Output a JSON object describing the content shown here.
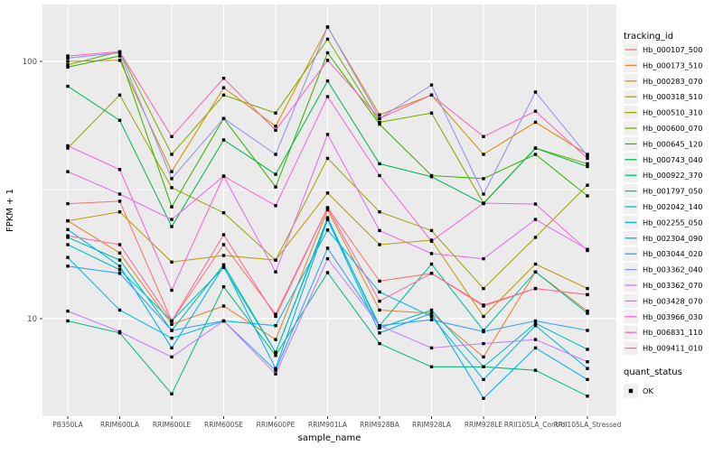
{
  "chart_data": {
    "type": "line",
    "title": "",
    "xlabel": "sample_name",
    "ylabel": "FPKM + 1",
    "y_scale": "log10",
    "y_ticks": [
      {
        "label": "100",
        "value": 100
      },
      {
        "label": "10",
        "value": 10
      }
    ],
    "y_minor_ticks": [
      31.6
    ],
    "ylim_log": [
      3.95,
      170
    ],
    "categories": [
      "PB350LA",
      "RRIM600LA",
      "RRIM600LE",
      "RRIM600SE",
      "RRIM600PE",
      "RRIM901LA",
      "RRIM928BA",
      "RRIM928LA",
      "RRIM928LE",
      "RRII105LA_Control",
      "RRII105LA_Stressed"
    ],
    "legend_title": "tracking_id",
    "point_legend": {
      "title": "quant_status",
      "label": "OK",
      "marker": "black-square"
    },
    "legend_position": "right",
    "panel_bg": "#EBEBEB",
    "grid_color": "#FFFFFF",
    "key_bg": "#F0F0F0",
    "tick_text_color": "#4D4D4D",
    "point_color": "#000000",
    "series": [
      {
        "name": "Hb_000107_500",
        "color": "#F8766D",
        "values": [
          28,
          28.6,
          9.8,
          19.4,
          10.4,
          27,
          14,
          15,
          11.3,
          13.1,
          12.4
        ]
      },
      {
        "name": "Hb_000173_510",
        "color": "#EA8331",
        "values": [
          24,
          18,
          9.5,
          11.2,
          8.3,
          26.5,
          10.8,
          10.5,
          7.1,
          15.2,
          10.7
        ]
      },
      {
        "name": "Hb_000283_070",
        "color": "#D89000",
        "values": [
          100,
          101,
          37.3,
          79,
          56,
          136,
          62,
          74,
          43.5,
          58,
          43.5
        ]
      },
      {
        "name": "Hb_000318_510",
        "color": "#C09B00",
        "values": [
          24,
          26,
          16.6,
          17.6,
          16.9,
          30.8,
          19.4,
          20.2,
          10.2,
          16.3,
          13.1
        ]
      },
      {
        "name": "Hb_000510_310",
        "color": "#A3A500",
        "values": [
          46,
          74,
          32.3,
          25.8,
          16.9,
          42,
          26,
          22,
          13.1,
          20.7,
          33
        ]
      },
      {
        "name": "Hb_000600_070",
        "color": "#7CAE00",
        "values": [
          97,
          109,
          43.5,
          74,
          63,
          122,
          58,
          63,
          28.1,
          46,
          40
        ]
      },
      {
        "name": "Hb_000645_120",
        "color": "#39B600",
        "values": [
          95,
          105,
          27.2,
          60,
          32.5,
          108,
          57,
          36,
          35,
          43.5,
          30
        ]
      },
      {
        "name": "Hb_000743_040",
        "color": "#00BB4E",
        "values": [
          80,
          59,
          22.8,
          49.5,
          36.4,
          84,
          40,
          35.6,
          28,
          46,
          39
        ]
      },
      {
        "name": "Hb_000922_370",
        "color": "#00BF7D",
        "values": [
          9.8,
          8.8,
          5.1,
          13.3,
          7.2,
          15.1,
          8.0,
          6.5,
          6.5,
          6.3,
          5.0
        ]
      },
      {
        "name": "Hb_001797_050",
        "color": "#00C1A3",
        "values": [
          20.7,
          16.9,
          9.0,
          16.2,
          7.4,
          24.3,
          9.4,
          16.3,
          9.0,
          15.2,
          10.5
        ]
      },
      {
        "name": "Hb_002042_140",
        "color": "#00BFC4",
        "values": [
          19.4,
          15.5,
          9.8,
          15.8,
          7.4,
          24.7,
          9.2,
          10.8,
          6.5,
          9.6,
          7.6
        ]
      },
      {
        "name": "Hb_002255_050",
        "color": "#00BAE0",
        "values": [
          17.3,
          10.8,
          8.4,
          9.8,
          9.4,
          22.1,
          12.7,
          10.2,
          5.8,
          9.4,
          6.4
        ]
      },
      {
        "name": "Hb_002304_090",
        "color": "#00B0F6",
        "values": [
          22.2,
          16.0,
          7.7,
          16.0,
          6.4,
          24.3,
          8.8,
          10.5,
          4.9,
          7.7,
          5.8
        ]
      },
      {
        "name": "Hb_003044_020",
        "color": "#35A2FF",
        "values": [
          16.0,
          15.0,
          9.0,
          9.8,
          6.3,
          18.8,
          9.4,
          9.9,
          8.9,
          9.8,
          9.0
        ]
      },
      {
        "name": "Hb_003362_040",
        "color": "#9590FF",
        "values": [
          103,
          108,
          35,
          60,
          43.5,
          136,
          60,
          81,
          30.5,
          76,
          43
        ]
      },
      {
        "name": "Hb_003362_070",
        "color": "#C77CFF",
        "values": [
          10.7,
          8.9,
          7.1,
          9.8,
          6.1,
          17.1,
          9.4,
          7.7,
          8.0,
          8.3,
          6.8
        ]
      },
      {
        "name": "Hb_003428_070",
        "color": "#E76BF3",
        "values": [
          37.3,
          30.5,
          24.3,
          35.8,
          15.2,
          52,
          22,
          17.9,
          17.1,
          24.3,
          18.6
        ]
      },
      {
        "name": "Hb_003966_030",
        "color": "#FA62DB",
        "values": [
          47,
          38,
          12.9,
          35.8,
          27.5,
          73,
          36,
          20,
          28.1,
          27.9,
          18.4
        ]
      },
      {
        "name": "Hb_006831_110",
        "color": "#FF62BC",
        "values": [
          105,
          109,
          51,
          86,
          54,
          101,
          60,
          74,
          51,
          64,
          42
        ]
      },
      {
        "name": "Hb_009411_010",
        "color": "#FF6A98",
        "values": [
          21,
          19.4,
          9.8,
          21.2,
          10.2,
          27,
          11.7,
          15,
          11.2,
          13.1,
          12.4
        ]
      }
    ]
  }
}
